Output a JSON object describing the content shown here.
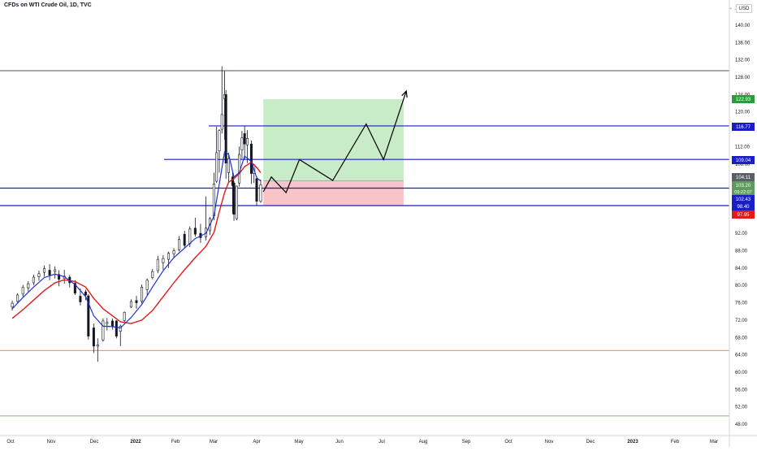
{
  "header": {
    "title": "CFDs on WTI Crude Oil, 1D, TVC",
    "currency": "USD",
    "chevron": "⌄"
  },
  "colors": {
    "up": "#131722",
    "down": "#131722",
    "ema_fast": "#1f2fd6",
    "ema_slow": "#e01b1b",
    "hline": "#1a1ec6",
    "hline_red": "#e05a5a",
    "hline_green": "#5d9c5d",
    "grid_top": "#131722",
    "profit_zone": "#c8ecc8",
    "loss_zone": "#f8c4c8",
    "axis_text": "#131722",
    "path": "#000000"
  },
  "chart_data": {
    "type": "candlestick",
    "title": "CFDs on WTI Crude Oil, 1D, TVC",
    "ylim": [
      46,
      149
    ],
    "y_ticks": [
      48,
      52,
      56,
      60,
      64,
      68,
      72,
      76,
      80,
      84,
      88,
      92,
      96,
      100,
      104,
      108,
      112,
      116,
      120,
      124,
      128,
      132,
      136,
      140,
      144
    ],
    "x_ticks": [
      "Oct",
      "Nov",
      "Dec",
      "2022",
      "Feb",
      "Mar",
      "Apr",
      "May",
      "Jun",
      "Jul",
      "Aug",
      "Sep",
      "Oct",
      "Nov",
      "Dec",
      "2023",
      "Feb",
      "Mar"
    ],
    "price_labels": [
      {
        "value": 122.93,
        "label": "122.93",
        "color": "#2a9d3a"
      },
      {
        "value": 116.77,
        "label": "116.77",
        "color": "#1a1ec6"
      },
      {
        "value": 109.04,
        "label": "109.04",
        "color": "#1a1ec6"
      },
      {
        "value": 104.11,
        "label": "104.11",
        "color": "#5b6068"
      },
      {
        "value": 103.2,
        "label": "103.20",
        "color": "#5d9c5d"
      },
      {
        "value": 102.43,
        "label": "102.43",
        "color": "#1a1ec6"
      },
      {
        "value": 98.4,
        "label": "98.40",
        "color": "#1a1ec6"
      },
      {
        "value": 97.95,
        "label": "97.95",
        "color": "#e01b1b"
      }
    ],
    "countdown": "09:22:07",
    "horizontal_levels": [
      {
        "value": 129.5,
        "color": "#131722",
        "from": "Oct",
        "extends": "right"
      },
      {
        "value": 116.77,
        "color": "#1a1ec6",
        "from": "Mar",
        "extends": "right"
      },
      {
        "value": 109.04,
        "color": "#1a1ec6",
        "from": "Feb",
        "extends": "right"
      },
      {
        "value": 102.43,
        "color": "#1a1ec6",
        "from": "Oct",
        "extends": "right"
      },
      {
        "value": 98.4,
        "color": "#1a1ec6",
        "from": "Oct",
        "extends": "right"
      },
      {
        "value": 65.0,
        "color": "#e05a5a",
        "from": "Oct",
        "extends": "right"
      },
      {
        "value": 49.9,
        "color": "#5d9c5d",
        "from": "Oct",
        "extends": "right"
      }
    ],
    "position": {
      "type": "long",
      "entry": 104.11,
      "target": 122.93,
      "stop": 98.4,
      "start": "2022-04-06",
      "end": "2022-07-20"
    },
    "projection_path": [
      [
        "2022-04-06",
        101.6
      ],
      [
        "2022-04-12",
        105.0
      ],
      [
        "2022-04-23",
        101.4
      ],
      [
        "2022-05-03",
        109.0
      ],
      [
        "2022-05-28",
        104.2
      ],
      [
        "2022-06-22",
        117.2
      ],
      [
        "2022-07-05",
        109.0
      ],
      [
        "2022-07-22",
        124.8
      ]
    ],
    "candles": [
      [
        "2021-09-30",
        75.0,
        76.5,
        74.2,
        75.9
      ],
      [
        "2021-10-04",
        76.3,
        78.2,
        75.8,
        77.8
      ],
      [
        "2021-10-08",
        78.0,
        80.1,
        77.4,
        79.6
      ],
      [
        "2021-10-12",
        79.4,
        81.0,
        78.6,
        80.4
      ],
      [
        "2021-10-16",
        80.6,
        82.5,
        80.0,
        81.9
      ],
      [
        "2021-10-20",
        82.0,
        83.4,
        81.1,
        82.7
      ],
      [
        "2021-10-24",
        83.0,
        84.6,
        82.0,
        83.9
      ],
      [
        "2021-10-28",
        83.5,
        84.9,
        81.2,
        82.4
      ],
      [
        "2021-11-01",
        83.2,
        84.4,
        81.6,
        83.6
      ],
      [
        "2021-11-04",
        82.5,
        83.5,
        79.8,
        81.4
      ],
      [
        "2021-11-08",
        81.6,
        83.6,
        80.4,
        82.1
      ],
      [
        "2021-11-12",
        81.9,
        82.4,
        79.5,
        80.6
      ],
      [
        "2021-11-16",
        80.5,
        81.2,
        77.8,
        78.2
      ],
      [
        "2021-11-20",
        77.5,
        79.3,
        75.4,
        76.2
      ],
      [
        "2021-11-24",
        78.5,
        79.0,
        76.6,
        77.8
      ],
      [
        "2021-11-26",
        77.6,
        78.0,
        67.5,
        68.3
      ],
      [
        "2021-11-30",
        70.2,
        71.2,
        64.4,
        66.0
      ],
      [
        "2021-12-03",
        66.0,
        67.8,
        62.4,
        66.3
      ],
      [
        "2021-12-07",
        67.4,
        72.4,
        67.0,
        71.8
      ],
      [
        "2021-12-10",
        71.2,
        72.5,
        69.6,
        71.5
      ],
      [
        "2021-12-14",
        71.8,
        72.4,
        69.8,
        70.6
      ],
      [
        "2021-12-17",
        71.8,
        72.0,
        67.8,
        68.3
      ],
      [
        "2021-12-20",
        69.4,
        71.0,
        66.0,
        70.6
      ],
      [
        "2021-12-23",
        71.9,
        74.0,
        71.4,
        73.8
      ],
      [
        "2021-12-28",
        75.0,
        76.8,
        74.8,
        76.3
      ],
      [
        "2022-01-01",
        76.5,
        77.6,
        74.6,
        76.0
      ],
      [
        "2022-01-05",
        76.3,
        80.2,
        75.8,
        79.6
      ],
      [
        "2022-01-09",
        79.0,
        81.6,
        77.8,
        81.2
      ],
      [
        "2022-01-13",
        81.8,
        83.8,
        81.4,
        83.2
      ],
      [
        "2022-01-17",
        83.4,
        86.8,
        82.8,
        86.0
      ],
      [
        "2022-01-21",
        85.2,
        87.0,
        83.6,
        86.2
      ],
      [
        "2022-01-25",
        86.0,
        87.8,
        84.0,
        87.4
      ],
      [
        "2022-01-29",
        87.3,
        88.6,
        86.2,
        88.0
      ],
      [
        "2022-02-02",
        88.2,
        91.4,
        87.8,
        90.6
      ],
      [
        "2022-02-06",
        91.8,
        92.6,
        88.6,
        89.2
      ],
      [
        "2022-02-10",
        89.6,
        93.6,
        88.8,
        93.0
      ],
      [
        "2022-02-14",
        93.2,
        95.6,
        91.2,
        91.8
      ],
      [
        "2022-02-18",
        92.0,
        94.2,
        89.8,
        91.0
      ],
      [
        "2022-02-22",
        91.2,
        100.5,
        90.4,
        93.2
      ],
      [
        "2022-02-25",
        92.6,
        95.8,
        91.6,
        95.4
      ],
      [
        "2022-02-28",
        96.0,
        106.0,
        95.0,
        103.4
      ],
      [
        "2022-03-02",
        104.0,
        116.6,
        103.6,
        110.6
      ],
      [
        "2022-03-04",
        111.0,
        116.0,
        106.0,
        115.7
      ],
      [
        "2022-03-06",
        116.0,
        130.5,
        115.0,
        119.4
      ],
      [
        "2022-03-08",
        123.0,
        129.4,
        113.6,
        124.0
      ],
      [
        "2022-03-09",
        124.0,
        125.0,
        104.6,
        108.2
      ],
      [
        "2022-03-11",
        106.0,
        110.6,
        103.6,
        109.2
      ],
      [
        "2022-03-14",
        105.0,
        106.0,
        96.5,
        103.0
      ],
      [
        "2022-03-15",
        103.6,
        104.0,
        94.9,
        96.4
      ],
      [
        "2022-03-17",
        95.4,
        103.0,
        95.0,
        102.9
      ],
      [
        "2022-03-19",
        103.6,
        112.0,
        102.8,
        110.2
      ],
      [
        "2022-03-21",
        111.2,
        115.6,
        109.2,
        114.0
      ],
      [
        "2022-03-23",
        115.0,
        116.8,
        109.0,
        112.6
      ],
      [
        "2022-03-25",
        112.4,
        115.8,
        108.2,
        113.9
      ],
      [
        "2022-03-28",
        112.6,
        113.4,
        103.4,
        105.8
      ],
      [
        "2022-03-30",
        105.8,
        108.0,
        103.6,
        107.8
      ],
      [
        "2022-04-01",
        104.6,
        105.2,
        98.4,
        99.4
      ],
      [
        "2022-04-04",
        99.4,
        104.4,
        99.0,
        103.2
      ]
    ],
    "ema_fast": [
      [
        "2021-09-30",
        74.6
      ],
      [
        "2021-10-08",
        77.2
      ],
      [
        "2021-10-16",
        79.6
      ],
      [
        "2021-10-24",
        81.8
      ],
      [
        "2021-11-01",
        82.6
      ],
      [
        "2021-11-08",
        82.0
      ],
      [
        "2021-11-16",
        80.2
      ],
      [
        "2021-11-24",
        77.4
      ],
      [
        "2021-11-30",
        73.0
      ],
      [
        "2021-12-07",
        70.6
      ],
      [
        "2021-12-14",
        70.5
      ],
      [
        "2021-12-20",
        70.2
      ],
      [
        "2021-12-28",
        72.6
      ],
      [
        "2022-01-05",
        75.6
      ],
      [
        "2022-01-13",
        79.6
      ],
      [
        "2022-01-21",
        83.4
      ],
      [
        "2022-01-29",
        86.4
      ],
      [
        "2022-02-06",
        88.6
      ],
      [
        "2022-02-14",
        90.8
      ],
      [
        "2022-02-22",
        92.0
      ],
      [
        "2022-02-28",
        96.0
      ],
      [
        "2022-03-04",
        103.4
      ],
      [
        "2022-03-08",
        110.8
      ],
      [
        "2022-03-11",
        110.2
      ],
      [
        "2022-03-15",
        105.0
      ],
      [
        "2022-03-19",
        106.0
      ],
      [
        "2022-03-23",
        109.8
      ],
      [
        "2022-03-28",
        108.6
      ],
      [
        "2022-04-01",
        104.8
      ],
      [
        "2022-04-04",
        104.1
      ]
    ],
    "ema_slow": [
      [
        "2021-09-30",
        72.4
      ],
      [
        "2021-10-08",
        74.4
      ],
      [
        "2021-10-16",
        76.6
      ],
      [
        "2021-10-24",
        78.8
      ],
      [
        "2021-11-01",
        80.6
      ],
      [
        "2021-11-08",
        81.3
      ],
      [
        "2021-11-16",
        80.9
      ],
      [
        "2021-11-24",
        79.6
      ],
      [
        "2021-11-30",
        77.0
      ],
      [
        "2021-12-07",
        74.6
      ],
      [
        "2021-12-14",
        73.0
      ],
      [
        "2021-12-20",
        71.6
      ],
      [
        "2021-12-28",
        71.2
      ],
      [
        "2022-01-05",
        72.0
      ],
      [
        "2022-01-13",
        74.2
      ],
      [
        "2022-01-21",
        77.4
      ],
      [
        "2022-01-29",
        80.6
      ],
      [
        "2022-02-06",
        83.6
      ],
      [
        "2022-02-14",
        86.4
      ],
      [
        "2022-02-22",
        89.0
      ],
      [
        "2022-02-28",
        92.2
      ],
      [
        "2022-03-04",
        97.0
      ],
      [
        "2022-03-08",
        101.4
      ],
      [
        "2022-03-11",
        103.8
      ],
      [
        "2022-03-15",
        104.6
      ],
      [
        "2022-03-19",
        105.8
      ],
      [
        "2022-03-23",
        107.4
      ],
      [
        "2022-03-28",
        108.4
      ],
      [
        "2022-04-01",
        107.2
      ],
      [
        "2022-04-04",
        106.0
      ]
    ]
  }
}
